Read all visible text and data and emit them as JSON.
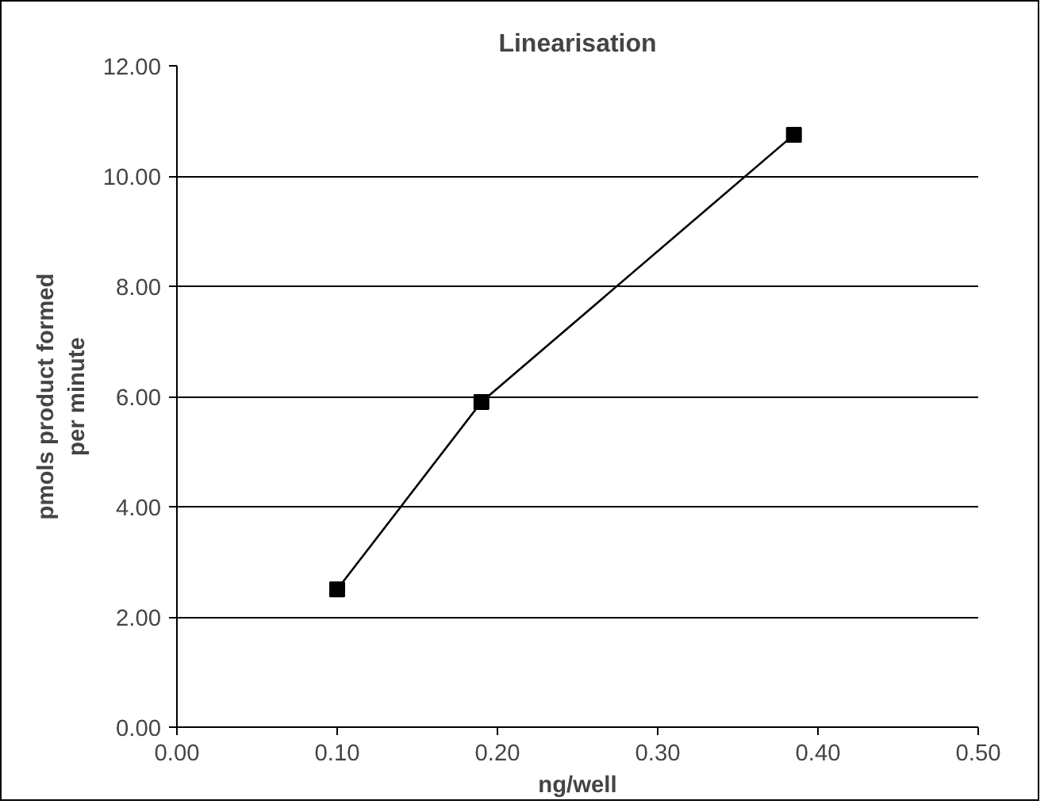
{
  "chart_data": {
    "type": "line",
    "title": "Linearisation",
    "xlabel": "ng/well",
    "ylabel": "pmols product formed\nper minute",
    "x": [
      0.1,
      0.19,
      0.385
    ],
    "series": [
      {
        "color": "#000000",
        "values": [
          2.5,
          5.9,
          10.75
        ]
      }
    ],
    "marker": "square",
    "line_style": "solid",
    "grid": "y",
    "xlim": [
      0,
      0.5
    ],
    "xticks": [
      {
        "value": 0,
        "label": "0.00"
      },
      {
        "value": 0.1,
        "label": "0.10"
      },
      {
        "value": 0.2,
        "label": "0.20"
      },
      {
        "value": 0.3,
        "label": "0.30"
      },
      {
        "value": 0.4,
        "label": "0.40"
      },
      {
        "value": 0.5,
        "label": "0.50"
      }
    ],
    "ylim": [
      0,
      12
    ],
    "yticks": [
      {
        "value": 0,
        "label": "0.00"
      },
      {
        "value": 2,
        "label": "2.00"
      },
      {
        "value": 4,
        "label": "4.00"
      },
      {
        "value": 6,
        "label": "6.00"
      },
      {
        "value": 8,
        "label": "8.00"
      },
      {
        "value": 10,
        "label": "10.00"
      },
      {
        "value": 12,
        "label": "12.00"
      }
    ]
  }
}
